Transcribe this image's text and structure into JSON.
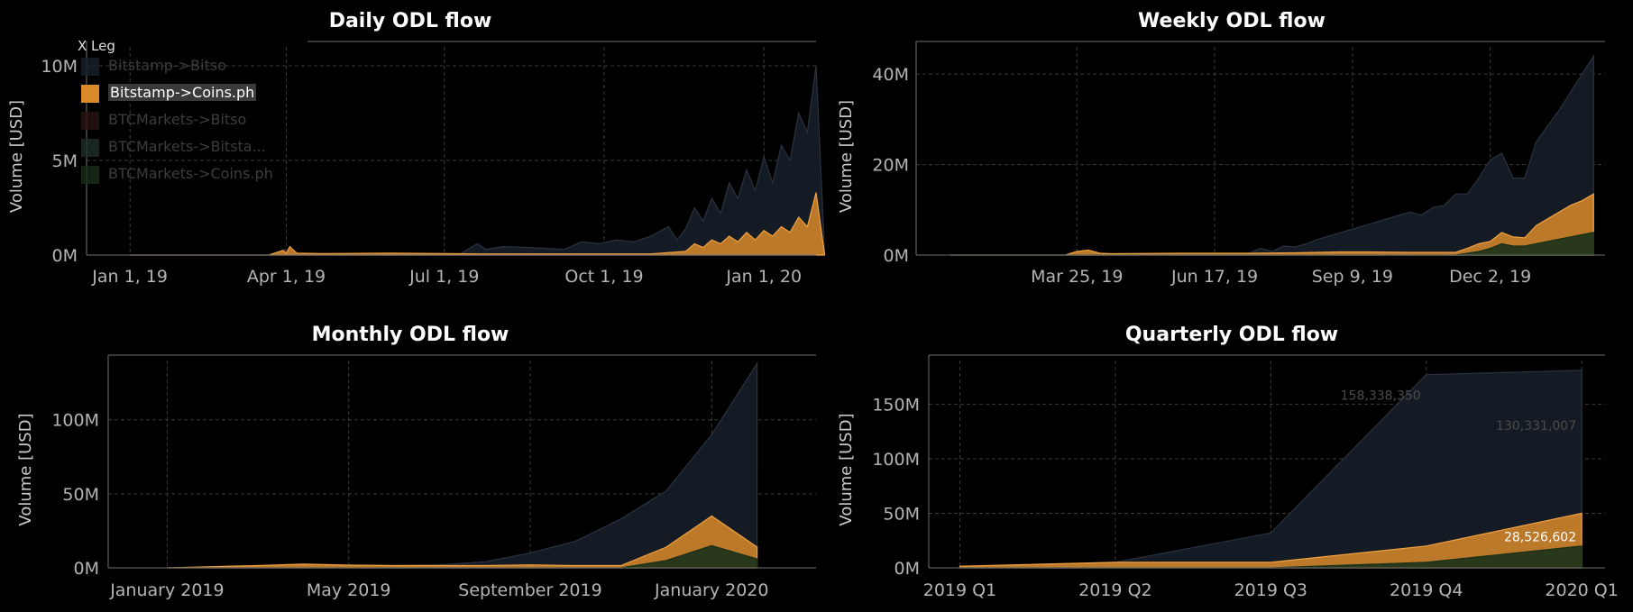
{
  "legend": {
    "title": "X Leg",
    "items": [
      {
        "label": "Bitstamp->Bitso",
        "color": "#19202a",
        "active": false
      },
      {
        "label": "Bitstamp->Coins.ph",
        "color": "#d98a2b",
        "active": true
      },
      {
        "label": "BTCMarkets->Bitso",
        "color": "#2a1414",
        "active": false
      },
      {
        "label": "BTCMarkets->Bitsta...",
        "color": "#1e2e2a",
        "active": false
      },
      {
        "label": "BTCMarkets->Coins.ph",
        "color": "#1a2e1a",
        "active": false
      }
    ]
  },
  "colors": {
    "back_series": "#151b24",
    "back_series_stroke": "#2a3240",
    "highlight": "#d98a2b",
    "highlight_stroke": "#f0a040",
    "green": "#18301a",
    "red": "#3a1818"
  },
  "chart_data": [
    {
      "id": "daily",
      "type": "area",
      "title": "Daily ODL flow",
      "ylabel": "Volume [USD]",
      "ylim": [
        0,
        11000000
      ],
      "yticks": [
        {
          "v": 0,
          "label": "0M"
        },
        {
          "v": 5000000,
          "label": "5M"
        },
        {
          "v": 10000000,
          "label": "10M"
        }
      ],
      "xticks": [
        {
          "v": 0,
          "label": "Jan 1, 19"
        },
        {
          "v": 90,
          "label": "Apr 1, 19"
        },
        {
          "v": 181,
          "label": "Jul 1, 19"
        },
        {
          "v": 273,
          "label": "Oct 1, 19"
        },
        {
          "v": 365,
          "label": "Jan 1, 20"
        }
      ],
      "xlim": [
        -25,
        395
      ],
      "series": [
        {
          "name": "Bitstamp->Bitso",
          "x": [
            0,
            60,
            85,
            89,
            92,
            96,
            110,
            150,
            190,
            200,
            205,
            215,
            230,
            250,
            260,
            270,
            280,
            290,
            300,
            310,
            315,
            320,
            325,
            330,
            335,
            340,
            345,
            350,
            355,
            360,
            365,
            370,
            375,
            380,
            385,
            390,
            395,
            400
          ],
          "y": [
            0,
            0,
            0,
            300000,
            100000,
            0,
            0,
            20000,
            50000,
            600000,
            300000,
            450000,
            400000,
            300000,
            700000,
            600000,
            800000,
            700000,
            1000000,
            1500000,
            800000,
            1400000,
            2500000,
            1800000,
            3000000,
            2200000,
            3800000,
            3000000,
            4500000,
            3400000,
            5200000,
            3800000,
            5800000,
            5000000,
            7500000,
            6500000,
            10000000,
            0
          ]
        },
        {
          "name": "Bitstamp->Coins.ph",
          "x": [
            0,
            80,
            88,
            90,
            92,
            96,
            110,
            150,
            180,
            200,
            300,
            320,
            325,
            330,
            335,
            340,
            345,
            350,
            355,
            360,
            365,
            370,
            375,
            380,
            385,
            390,
            395,
            400
          ],
          "y": [
            0,
            0,
            250000,
            100000,
            450000,
            100000,
            80000,
            100000,
            80000,
            60000,
            60000,
            200000,
            600000,
            400000,
            800000,
            600000,
            1000000,
            700000,
            1200000,
            800000,
            1300000,
            1000000,
            1500000,
            1200000,
            2000000,
            1500000,
            3300000,
            0
          ]
        }
      ]
    },
    {
      "id": "weekly",
      "type": "area",
      "title": "Weekly ODL flow",
      "ylabel": "Volume [USD]",
      "ylim": [
        0,
        46000000
      ],
      "yticks": [
        {
          "v": 0,
          "label": "0M"
        },
        {
          "v": 20000000,
          "label": "20M"
        },
        {
          "v": 40000000,
          "label": "40M"
        }
      ],
      "xticks": [
        {
          "v": 11,
          "label": "Mar 25, 19"
        },
        {
          "v": 23,
          "label": "Jun 17, 19"
        },
        {
          "v": 35,
          "label": "Sep 9, 19"
        },
        {
          "v": 47,
          "label": "Dec 2, 19"
        }
      ],
      "xlim": [
        -3,
        57
      ],
      "series": [
        {
          "name": "Bitstamp->Bitso",
          "x": [
            0,
            10,
            11,
            12,
            13,
            14,
            20,
            26,
            27,
            28,
            29,
            30,
            31,
            32,
            34,
            36,
            38,
            40,
            41,
            42,
            43,
            44,
            45,
            46,
            47,
            48,
            49,
            50,
            51,
            52,
            53,
            54,
            55,
            56
          ],
          "y": [
            0,
            0,
            800000,
            1000000,
            300000,
            200000,
            300000,
            400000,
            1500000,
            800000,
            2000000,
            1800000,
            2500000,
            3500000,
            5000000,
            6500000,
            8000000,
            9500000,
            8800000,
            10500000,
            11000000,
            13500000,
            13500000,
            17000000,
            21000000,
            22500000,
            17000000,
            17000000,
            25000000,
            28500000,
            32000000,
            36000000,
            40000000,
            44000000
          ]
        },
        {
          "name": "Bitstamp->Coins.ph",
          "x": [
            0,
            10,
            11,
            12,
            13,
            14,
            20,
            26,
            30,
            34,
            36,
            40,
            44,
            45,
            46,
            47,
            48,
            49,
            50,
            51,
            52,
            53,
            54,
            55,
            56
          ],
          "y": [
            0,
            0,
            800000,
            1100000,
            400000,
            300000,
            400000,
            400000,
            500000,
            700000,
            700000,
            600000,
            600000,
            1500000,
            2500000,
            3000000,
            5000000,
            4000000,
            3800000,
            6500000,
            8000000,
            9500000,
            11000000,
            12000000,
            13500000
          ]
        },
        {
          "name": "BTCMarkets->Coins.ph",
          "x": [
            0,
            44,
            46,
            47,
            48,
            49,
            50,
            52,
            54,
            56
          ],
          "y": [
            0,
            0,
            800000,
            1500000,
            2500000,
            2000000,
            2000000,
            3000000,
            4000000,
            5000000
          ]
        }
      ]
    },
    {
      "id": "monthly",
      "type": "area",
      "title": "Monthly ODL flow",
      "ylabel": "Volume [USD]",
      "ylim": [
        0,
        140000000
      ],
      "yticks": [
        {
          "v": 0,
          "label": "0M"
        },
        {
          "v": 50000000,
          "label": "50M"
        },
        {
          "v": 100000000,
          "label": "100M"
        }
      ],
      "xticks": [
        {
          "v": 0,
          "label": "January 2019"
        },
        {
          "v": 4,
          "label": "May 2019"
        },
        {
          "v": 8,
          "label": "September 2019"
        },
        {
          "v": 12,
          "label": "January 2020"
        }
      ],
      "xlim": [
        -1.3,
        14.3
      ],
      "series": [
        {
          "name": "Bitstamp->Bitso",
          "x": [
            0,
            1,
            2,
            3,
            4,
            5,
            6,
            7,
            8,
            9,
            10,
            11,
            12,
            13
          ],
          "y": [
            0,
            800000,
            1500000,
            2000000,
            1800000,
            1600000,
            2000000,
            4000000,
            10000000,
            18000000,
            33000000,
            52000000,
            90000000,
            138000000
          ]
        },
        {
          "name": "Bitstamp->Coins.ph",
          "x": [
            0,
            1,
            2,
            3,
            4,
            5,
            6,
            7,
            8,
            9,
            10,
            11,
            12,
            13
          ],
          "y": [
            0,
            800000,
            1500000,
            2500000,
            1800000,
            1500000,
            1500000,
            1500000,
            2000000,
            1500000,
            1500000,
            14000000,
            35000000,
            14000000
          ]
        },
        {
          "name": "BTCMarkets->Coins.ph",
          "x": [
            0,
            10,
            11,
            12,
            13
          ],
          "y": [
            0,
            0,
            5000000,
            15000000,
            6000000
          ]
        }
      ]
    },
    {
      "id": "quarterly",
      "type": "area",
      "title": "Quarterly ODL flow",
      "ylabel": "Volume [USD]",
      "ylim": [
        0,
        190000000
      ],
      "yticks": [
        {
          "v": 0,
          "label": "0M"
        },
        {
          "v": 50000000,
          "label": "50M"
        },
        {
          "v": 100000000,
          "label": "100M"
        },
        {
          "v": 150000000,
          "label": "150M"
        }
      ],
      "xticks": [
        {
          "v": 0,
          "label": "2019 Q1"
        },
        {
          "v": 1,
          "label": "2019 Q2"
        },
        {
          "v": 2,
          "label": "2019 Q3"
        },
        {
          "v": 3,
          "label": "2019 Q4"
        },
        {
          "v": 4,
          "label": "2020 Q1"
        }
      ],
      "xlim": [
        -0.2,
        4.15
      ],
      "series": [
        {
          "name": "Bitstamp->Bitso",
          "x": [
            0,
            1,
            2,
            3,
            4
          ],
          "y": [
            1000000,
            5000000,
            32000000,
            177000000,
            181000000
          ]
        },
        {
          "name": "Bitstamp->Coins.ph",
          "x": [
            0,
            1,
            2,
            3,
            4
          ],
          "y": [
            1500000,
            5000000,
            5000000,
            20000000,
            50000000
          ]
        },
        {
          "name": "BTCMarkets->Coins.ph",
          "x": [
            0,
            1,
            2,
            3,
            4
          ],
          "y": [
            0,
            0,
            0,
            5000000,
            20000000
          ]
        }
      ],
      "annotations": [
        {
          "x": 3,
          "y": 158338350,
          "text": "158,338,350",
          "dim": true
        },
        {
          "x": 4,
          "y": 130331007,
          "text": "130,331,007",
          "dim": true
        },
        {
          "x": 4,
          "y": 28526602,
          "text": "28,526,602",
          "dim": false
        }
      ]
    }
  ]
}
